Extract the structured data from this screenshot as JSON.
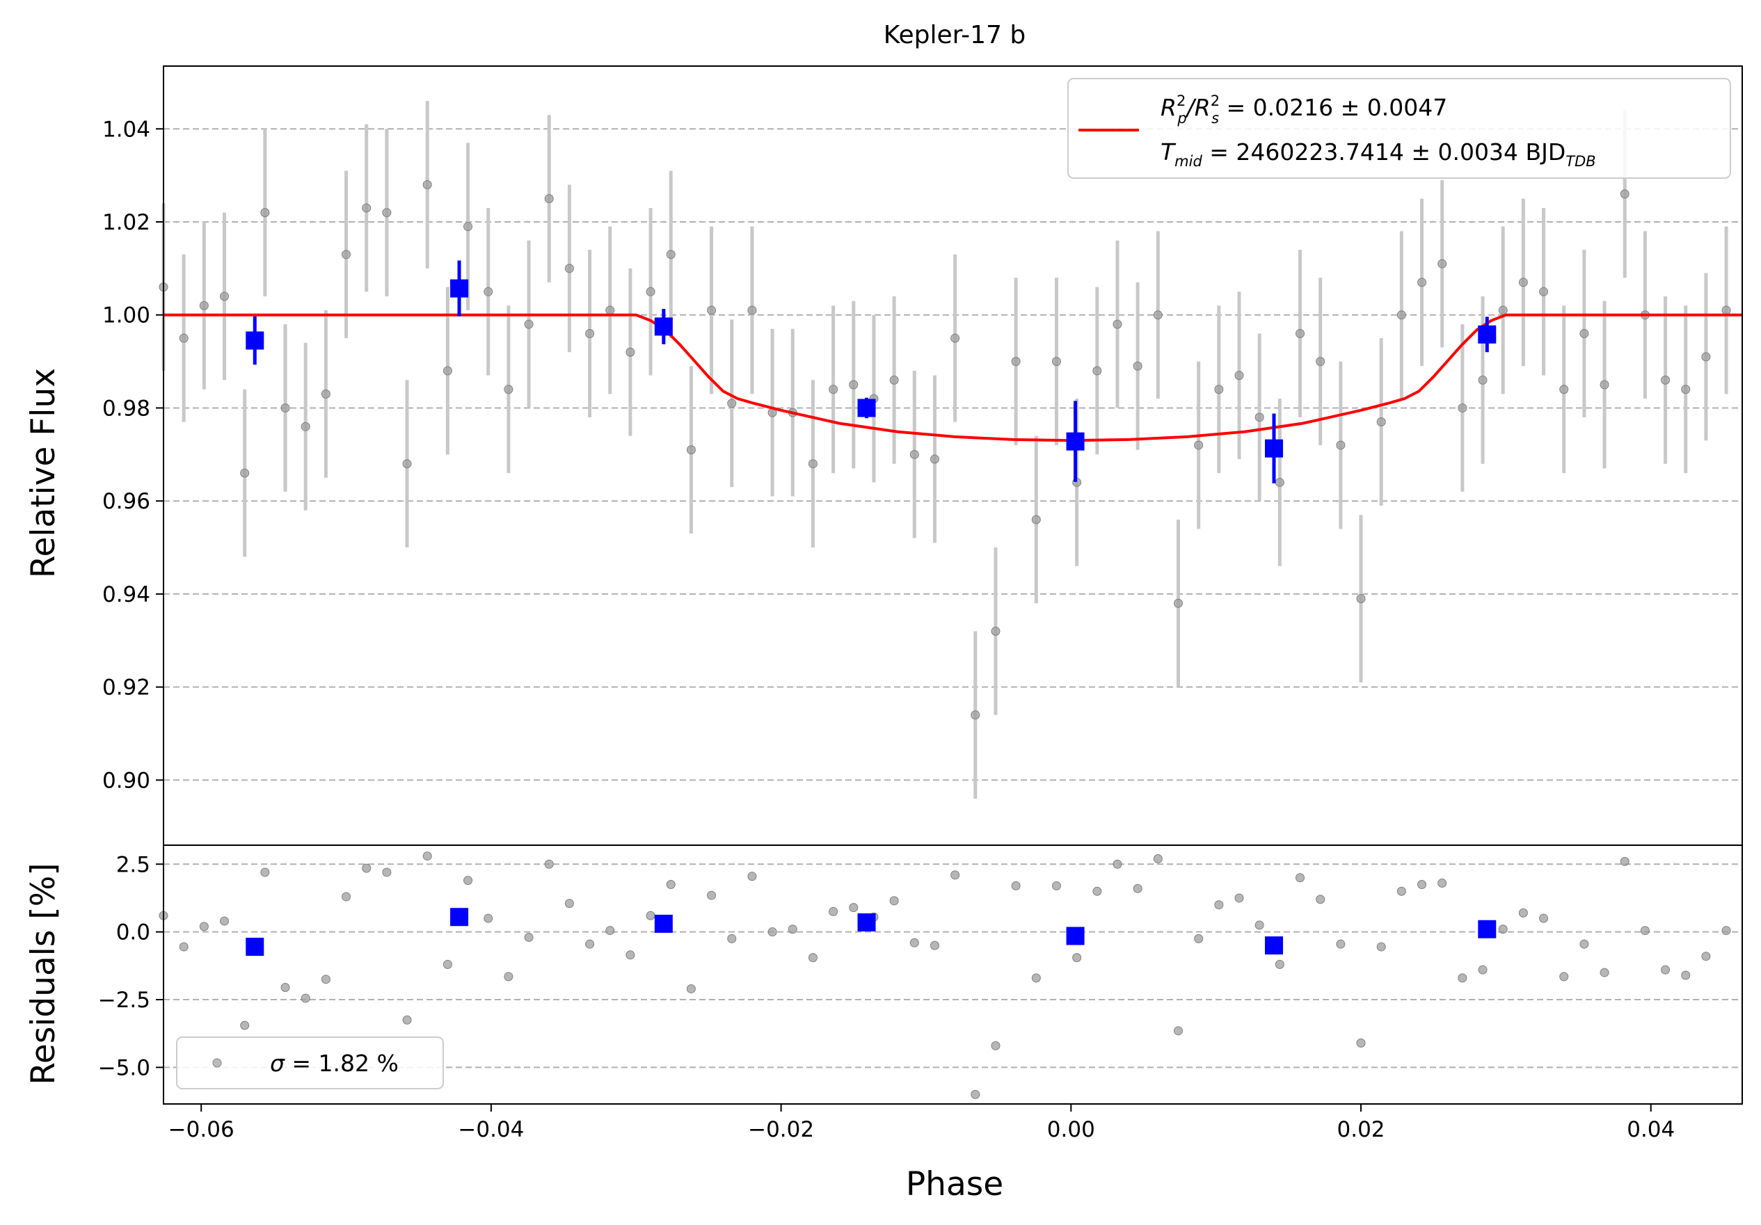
{
  "chart_data": [
    {
      "type": "scatter",
      "panel": "light-curve",
      "title": "Kepler-17 b",
      "xlabel": "",
      "ylabel": "Relative Flux",
      "xlim": [
        -0.0626,
        0.0463
      ],
      "ylim": [
        0.886,
        1.0535
      ],
      "yticks": [
        0.9,
        0.92,
        0.94,
        0.96,
        0.98,
        1.0,
        1.02,
        1.04
      ],
      "ytick_labels": [
        "0.90",
        "0.92",
        "0.94",
        "0.96",
        "0.98",
        "1.00",
        "1.02",
        "1.04"
      ],
      "grid": "y-dashed",
      "legend_placement": "top-right",
      "legend": {
        "line1_a": "R",
        "line1_a_sup": "2",
        "line1_a_sub": "p",
        "line1_b": "/R",
        "line1_b_sup": "2",
        "line1_b_sub": "s",
        "line1_value": " = 0.0216 ± 0.0047",
        "line2_a": "T",
        "line2_a_sub": "mid",
        "line2_value": " = 2460223.7414 ± 0.0034 BJD",
        "line2_unit_sub": "TDB"
      },
      "colors": {
        "raw": "#9e9e9e",
        "raw_err": "#c8c8c8",
        "binned": "#0000ff",
        "model": "#ff0000",
        "grid": "#b0b0b0"
      },
      "series": [
        {
          "kind": "raw",
          "x": [
            -0.0626,
            -0.0612,
            -0.0598,
            -0.0584,
            -0.057,
            -0.0556,
            -0.0542,
            -0.0528,
            -0.0514,
            -0.05,
            -0.0486,
            -0.0472,
            -0.0458,
            -0.0444,
            -0.043,
            -0.0416,
            -0.0402,
            -0.0388,
            -0.0374,
            -0.036,
            -0.0346,
            -0.0332,
            -0.0318,
            -0.0304,
            -0.029,
            -0.0276,
            -0.0262,
            -0.0248,
            -0.0234,
            -0.022,
            -0.0206,
            -0.0192,
            -0.0178,
            -0.0164,
            -0.015,
            -0.0136,
            -0.0122,
            -0.0108,
            -0.0094,
            -0.008,
            -0.0066,
            -0.0052,
            -0.0038,
            -0.0024,
            -0.001,
            0.0004,
            0.0018,
            0.0032,
            0.0046,
            0.006,
            0.0074,
            0.0088,
            0.0102,
            0.0116,
            0.013,
            0.0144,
            0.0158,
            0.0172,
            0.0186,
            0.02,
            0.0214,
            0.0228,
            0.0242,
            0.0256,
            0.027,
            0.0284,
            0.0298,
            0.0312,
            0.0326,
            0.034,
            0.0354,
            0.0368,
            0.0382,
            0.0396,
            0.041,
            0.0424,
            0.0438,
            0.0452
          ],
          "y": [
            1.006,
            0.995,
            1.002,
            1.004,
            0.966,
            1.022,
            0.98,
            0.976,
            0.983,
            1.013,
            1.023,
            1.022,
            0.968,
            1.028,
            0.988,
            1.019,
            1.005,
            0.984,
            0.998,
            1.025,
            1.01,
            0.996,
            1.001,
            0.992,
            1.005,
            1.013,
            0.971,
            1.001,
            0.981,
            1.001,
            0.979,
            0.979,
            0.968,
            0.984,
            0.985,
            0.982,
            0.986,
            0.97,
            0.969,
            0.995,
            0.914,
            0.932,
            0.99,
            0.956,
            0.99,
            0.964,
            0.988,
            0.998,
            0.989,
            1.0,
            0.938,
            0.972,
            0.984,
            0.987,
            0.978,
            0.964,
            0.996,
            0.99,
            0.972,
            0.939,
            0.977,
            1.0,
            1.007,
            1.011,
            0.98,
            0.986,
            1.001,
            1.007,
            1.005,
            0.984,
            0.996,
            0.985,
            1.026,
            1.0,
            0.986,
            0.984,
            0.991,
            1.001
          ],
          "yerr": 0.018
        },
        {
          "kind": "binned",
          "x": [
            -0.0563,
            -0.0422,
            -0.0281,
            -0.0141,
            0.0003,
            0.014,
            0.0287
          ],
          "y": [
            0.9945,
            1.0057,
            0.9975,
            0.98,
            0.9728,
            0.9713,
            0.9958
          ],
          "yerr": [
            0.0052,
            0.006,
            0.0038,
            0.0022,
            0.0087,
            0.0075,
            0.0038
          ]
        },
        {
          "kind": "model",
          "name": "transit model",
          "x": [
            -0.0626,
            -0.03,
            -0.029,
            -0.028,
            -0.027,
            -0.026,
            -0.025,
            -0.024,
            -0.023,
            -0.022,
            -0.02,
            -0.016,
            -0.012,
            -0.008,
            -0.004,
            0.0,
            0.004,
            0.008,
            0.012,
            0.016,
            0.02,
            0.022,
            0.023,
            0.024,
            0.025,
            0.026,
            0.027,
            0.028,
            0.029,
            0.03,
            0.0463
          ],
          "y": [
            1.0,
            1.0,
            0.9988,
            0.9968,
            0.9937,
            0.9902,
            0.9867,
            0.9836,
            0.982,
            0.9811,
            0.9795,
            0.9767,
            0.9749,
            0.9738,
            0.9732,
            0.973,
            0.9732,
            0.9738,
            0.9749,
            0.9767,
            0.9795,
            0.9811,
            0.982,
            0.9836,
            0.9867,
            0.9902,
            0.9937,
            0.9968,
            0.9988,
            1.0,
            1.0
          ]
        }
      ]
    },
    {
      "type": "scatter",
      "panel": "residuals",
      "title": "",
      "xlabel": "Phase",
      "ylabel": "Residuals [%]",
      "xlim": [
        -0.0626,
        0.0463
      ],
      "ylim": [
        -6.35,
        3.2
      ],
      "yticks": [
        -5.0,
        -2.5,
        0.0,
        2.5
      ],
      "ytick_labels": [
        "−5.0",
        "−2.5",
        "0.0",
        "2.5"
      ],
      "xticks": [
        -0.06,
        -0.04,
        -0.02,
        0.0,
        0.02,
        0.04
      ],
      "xtick_labels": [
        "−0.06",
        "−0.04",
        "−0.02",
        "0.00",
        "0.02",
        "0.04"
      ],
      "grid": "y-dashed",
      "legend_placement": "bottom-left",
      "legend": {
        "sigma_symbol": "σ",
        "sigma_text": " = 1.82 %"
      },
      "series": [
        {
          "kind": "raw",
          "x": [
            -0.0626,
            -0.0612,
            -0.0598,
            -0.0584,
            -0.057,
            -0.0556,
            -0.0542,
            -0.0528,
            -0.0514,
            -0.05,
            -0.0486,
            -0.0472,
            -0.0458,
            -0.0444,
            -0.043,
            -0.0416,
            -0.0402,
            -0.0388,
            -0.0374,
            -0.036,
            -0.0346,
            -0.0332,
            -0.0318,
            -0.0304,
            -0.029,
            -0.0276,
            -0.0262,
            -0.0248,
            -0.0234,
            -0.022,
            -0.0206,
            -0.0192,
            -0.0178,
            -0.0164,
            -0.015,
            -0.0136,
            -0.0122,
            -0.0108,
            -0.0094,
            -0.008,
            -0.0066,
            -0.0052,
            -0.0038,
            -0.0024,
            -0.001,
            0.0004,
            0.0018,
            0.0032,
            0.0046,
            0.006,
            0.0074,
            0.0088,
            0.0102,
            0.0116,
            0.013,
            0.0144,
            0.0158,
            0.0172,
            0.0186,
            0.02,
            0.0214,
            0.0228,
            0.0242,
            0.0256,
            0.027,
            0.0284,
            0.0298,
            0.0312,
            0.0326,
            0.034,
            0.0354,
            0.0368,
            0.0382,
            0.0396,
            0.041,
            0.0424,
            0.0438,
            0.0452
          ],
          "y": [
            0.6,
            -0.55,
            0.2,
            0.4,
            -3.45,
            2.2,
            -2.05,
            -2.45,
            -1.75,
            1.3,
            2.35,
            2.2,
            -3.25,
            2.8,
            -1.2,
            1.9,
            0.5,
            -1.65,
            -0.2,
            2.5,
            1.05,
            -0.45,
            0.05,
            -0.85,
            0.6,
            1.75,
            -2.1,
            1.35,
            -0.25,
            2.05,
            0.0,
            0.1,
            -0.95,
            0.75,
            0.9,
            0.55,
            1.15,
            -0.4,
            -0.5,
            2.1,
            -6.0,
            -4.2,
            1.7,
            -1.7,
            1.7,
            -0.95,
            1.5,
            2.5,
            1.6,
            2.7,
            -3.65,
            -0.25,
            1.0,
            1.25,
            0.25,
            -1.2,
            2.0,
            1.2,
            -0.45,
            -4.1,
            -0.55,
            1.5,
            1.75,
            1.8,
            -1.7,
            -1.4,
            0.1,
            0.7,
            0.5,
            -1.65,
            -0.45,
            -1.5,
            2.6,
            0.05,
            -1.4,
            -1.6,
            -0.9,
            0.05
          ]
        },
        {
          "kind": "binned",
          "x": [
            -0.0563,
            -0.0422,
            -0.0281,
            -0.0141,
            0.0003,
            0.014,
            0.0287
          ],
          "y": [
            -0.55,
            0.55,
            0.3,
            0.35,
            -0.15,
            -0.5,
            0.1
          ]
        }
      ]
    }
  ]
}
